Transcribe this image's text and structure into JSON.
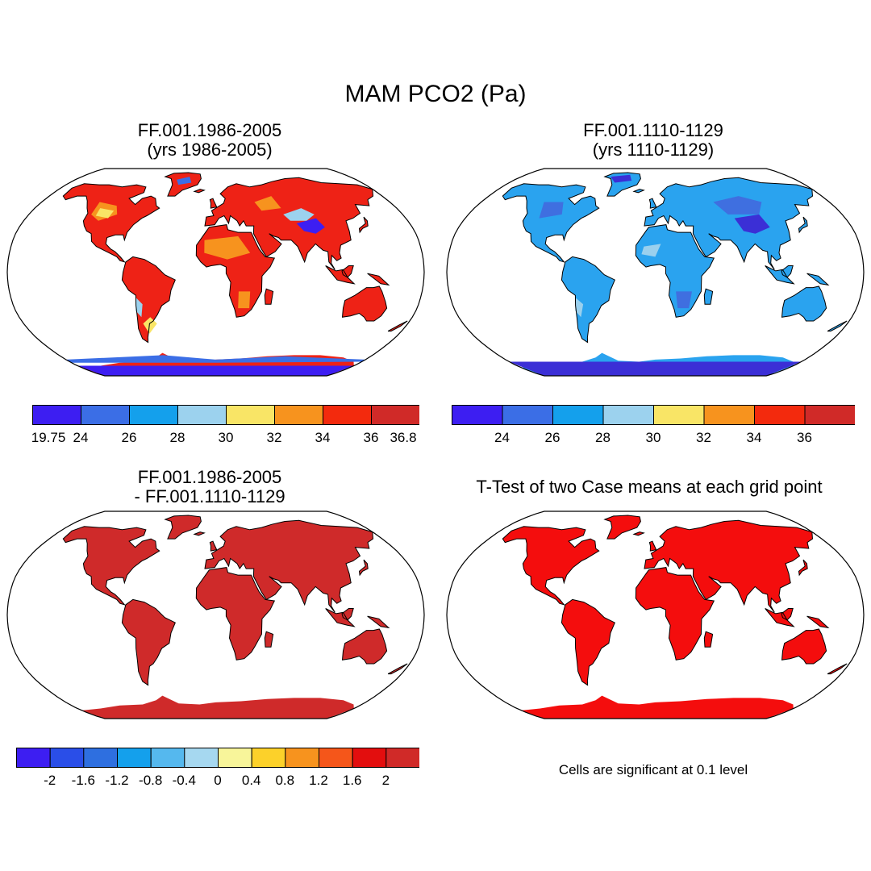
{
  "title": "MAM PCO2 (Pa)",
  "colors": {
    "ocean": "#ffffff",
    "outline": "#000000",
    "case1": {
      "land": "#ee2216",
      "hot": "#d02a28",
      "mid": "#f7931e",
      "warm": "#f9e566",
      "cool": "#9cd2ee",
      "cold": "#3b6ee6",
      "vcold": "#3d1ef2"
    },
    "case2": {
      "land": "#2aa3ef",
      "mid": "#3f6fe0",
      "dark": "#3b2fd6",
      "light": "#9ad0ee"
    },
    "diff": "#cf2a2a",
    "ttest": "#f40d0d"
  },
  "panels": [
    {
      "id": "case1",
      "title_lines": [
        "FF.001.1986-2005",
        "(yrs 1986-2005)"
      ],
      "colorbar": {
        "colors": [
          "#3d1ef2",
          "#3b6ee6",
          "#14a0ec",
          "#9cd2ee",
          "#f9e566",
          "#f7931e",
          "#f32a0d",
          "#d02a28"
        ],
        "labels": [
          "19.75",
          "24",
          "26",
          "28",
          "30",
          "32",
          "34",
          "36",
          "36.8"
        ],
        "label_mode": "edges"
      }
    },
    {
      "id": "case2",
      "title_lines": [
        "FF.001.1110-1129",
        "(yrs 1110-1129)"
      ],
      "colorbar": {
        "colors": [
          "#3d1ef2",
          "#3b6ee6",
          "#14a0ec",
          "#9cd2ee",
          "#f9e566",
          "#f7931e",
          "#f32a0d",
          "#d02a28"
        ],
        "labels": [
          "24",
          "26",
          "28",
          "30",
          "32",
          "34",
          "36"
        ],
        "label_mode": "interior"
      }
    },
    {
      "id": "diff",
      "title_lines": [
        "FF.001.1986-2005",
        "- FF.001.1110-1129"
      ],
      "colorbar": {
        "colors": [
          "#3d1ef2",
          "#2a4ee8",
          "#2e6fe0",
          "#14a0ec",
          "#55b8ee",
          "#a6d8f0",
          "#f8f59a",
          "#fcd12a",
          "#f7931e",
          "#f5561a",
          "#e30e0e",
          "#d02a28"
        ],
        "labels": [
          "-2",
          "-1.6",
          "-1.2",
          "-0.8",
          "-0.4",
          "0",
          "0.4",
          "0.8",
          "1.2",
          "1.6",
          "2"
        ],
        "label_mode": "interior"
      }
    },
    {
      "id": "ttest",
      "title_lines": [
        "T-Test of two Case means at each grid point"
      ],
      "note": "Cells are significant at 0.1 level"
    }
  ]
}
